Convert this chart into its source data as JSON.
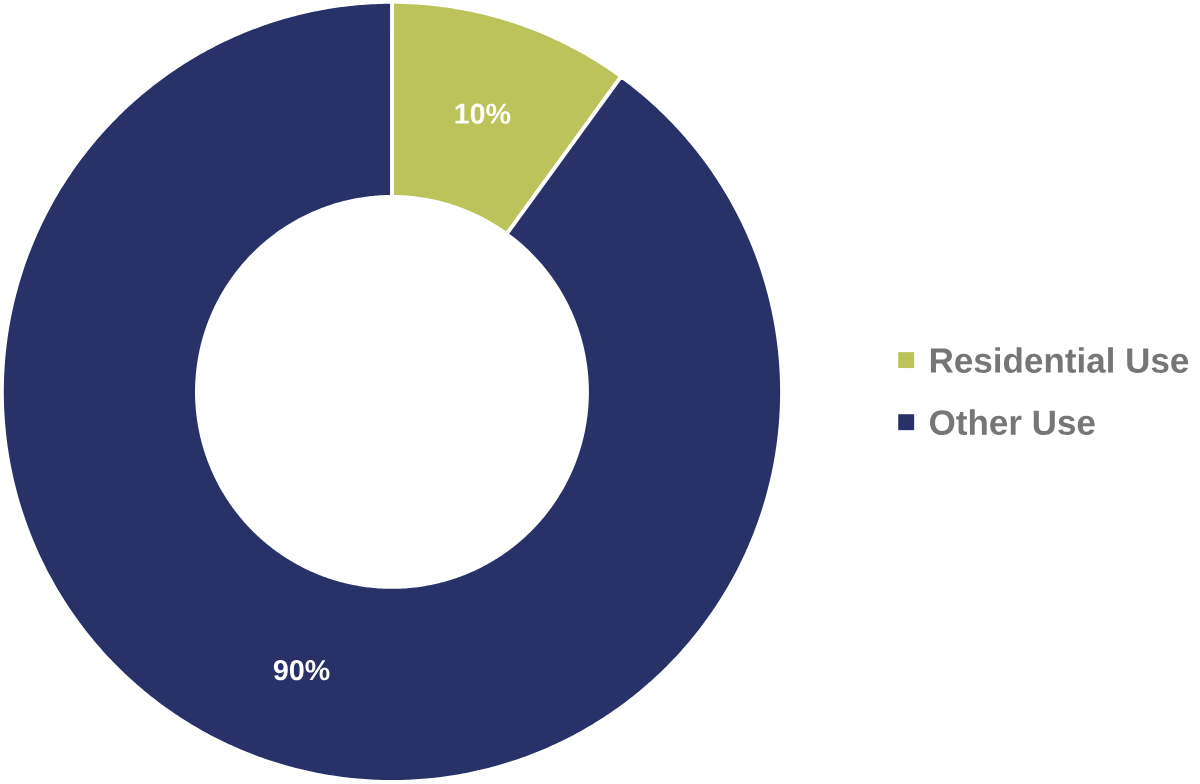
{
  "chart_data": {
    "type": "donut",
    "categories": [
      "Residential Use",
      "Other Use"
    ],
    "values": [
      10,
      90
    ],
    "colors": [
      "#bbc35a",
      "#283269"
    ],
    "value_labels": [
      "10%",
      "90%"
    ],
    "legend": "right"
  }
}
